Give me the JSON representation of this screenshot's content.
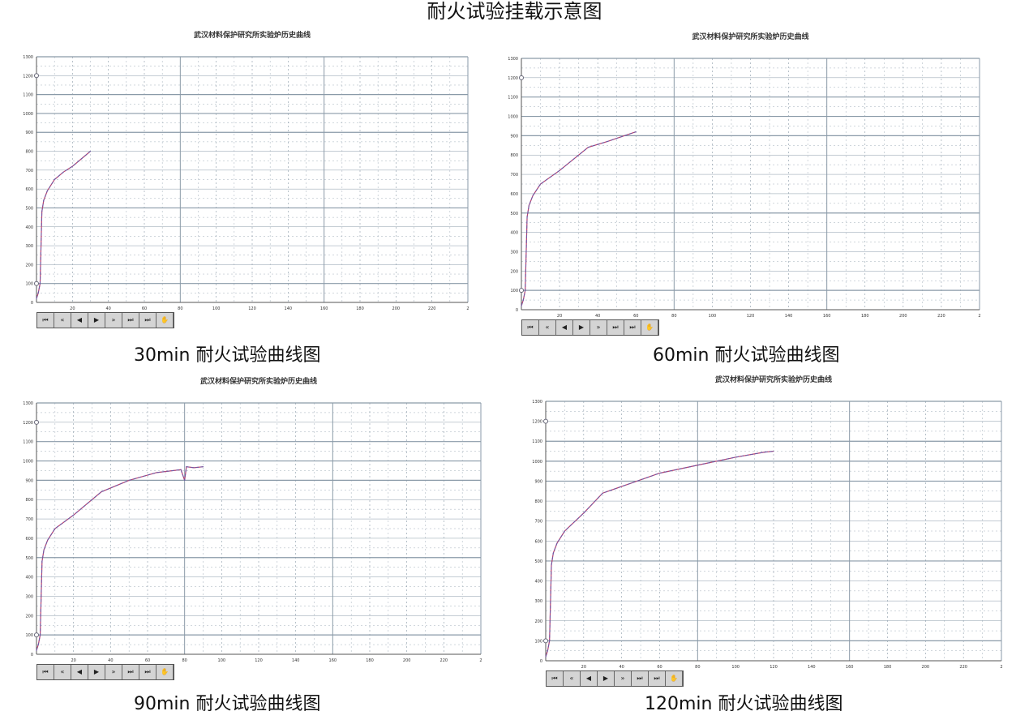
{
  "page_title": "耐火试验挂载示意图",
  "toolbar_icons": [
    "first-icon",
    "rewind-icon",
    "prev-icon",
    "play-icon",
    "fast-forward-icon",
    "skip-end-icon",
    "last-icon",
    "pointer-icon"
  ],
  "toolbar_glyphs": [
    "⏮",
    "«",
    "◀",
    "▶",
    "»",
    "⏭",
    "⏭",
    "✋"
  ],
  "colors": {
    "curve": "#6a5aa8",
    "curve2": "#c0406a",
    "grid": "#8a9aa8"
  },
  "chart_data": [
    {
      "type": "line",
      "title": "武汉材料保护研究所实验炉历史曲线",
      "caption": "30min 耐火试验曲线图",
      "ylim": [
        0,
        1300
      ],
      "xlim": [
        0,
        240
      ],
      "yticks": [
        "0",
        "100",
        "200",
        "300",
        "400",
        "500",
        "600",
        "700",
        "800",
        "900",
        "1000",
        "1100",
        "1200",
        "1300"
      ],
      "xticks": [
        "20",
        "40",
        "60",
        "80",
        "100",
        "120",
        "140",
        "160",
        "180",
        "200",
        "220",
        "2"
      ],
      "x": [
        0,
        1,
        2,
        3,
        4,
        6,
        10,
        15,
        20,
        25,
        30
      ],
      "y": [
        20,
        50,
        100,
        480,
        540,
        590,
        650,
        690,
        720,
        760,
        800
      ]
    },
    {
      "type": "line",
      "title": "武汉材料保护研究所实验炉历史曲线",
      "caption": "60min 耐火试验曲线图",
      "ylim": [
        0,
        1300
      ],
      "xlim": [
        0,
        240
      ],
      "yticks": [
        "0",
        "100",
        "200",
        "300",
        "400",
        "500",
        "600",
        "700",
        "800",
        "900",
        "1000",
        "1100",
        "1200",
        "1300"
      ],
      "xticks": [
        "20",
        "40",
        "60",
        "80",
        "100",
        "120",
        "140",
        "160",
        "180",
        "200",
        "220",
        "2"
      ],
      "x": [
        0,
        1,
        2,
        3,
        4,
        6,
        10,
        20,
        35,
        45,
        60
      ],
      "y": [
        20,
        50,
        100,
        480,
        540,
        590,
        650,
        720,
        840,
        870,
        920
      ]
    },
    {
      "type": "line",
      "title": "武汉材料保护研究所实验炉历史曲线",
      "caption": "90min 耐火试验曲线图",
      "ylim": [
        0,
        1300
      ],
      "xlim": [
        0,
        240
      ],
      "yticks": [
        "0",
        "100",
        "200",
        "300",
        "400",
        "500",
        "600",
        "700",
        "800",
        "900",
        "1000",
        "1100",
        "1200",
        "1300"
      ],
      "xticks": [
        "20",
        "40",
        "60",
        "80",
        "100",
        "120",
        "140",
        "160",
        "180",
        "200",
        "220",
        "2"
      ],
      "x": [
        0,
        1,
        2,
        3,
        4,
        6,
        10,
        20,
        35,
        50,
        65,
        78,
        80,
        81,
        85,
        90
      ],
      "y": [
        20,
        50,
        100,
        480,
        540,
        590,
        650,
        720,
        840,
        900,
        940,
        955,
        900,
        970,
        965,
        970
      ]
    },
    {
      "type": "line",
      "title": "武汉材料保护研究所实验炉历史曲线",
      "caption": "120min 耐火试验曲线图",
      "ylim": [
        0,
        1300
      ],
      "xlim": [
        0,
        240
      ],
      "yticks": [
        "0",
        "100",
        "200",
        "300",
        "400",
        "500",
        "600",
        "700",
        "800",
        "900",
        "1000",
        "1100",
        "1200",
        "1300"
      ],
      "xticks": [
        "20",
        "40",
        "60",
        "80",
        "100",
        "120",
        "140",
        "160",
        "180",
        "200",
        "220",
        "2"
      ],
      "x": [
        0,
        1,
        2,
        3,
        4,
        6,
        10,
        20,
        30,
        45,
        60,
        80,
        100,
        115,
        120
      ],
      "y": [
        20,
        50,
        100,
        480,
        540,
        590,
        650,
        740,
        840,
        890,
        940,
        980,
        1020,
        1045,
        1050
      ]
    }
  ]
}
